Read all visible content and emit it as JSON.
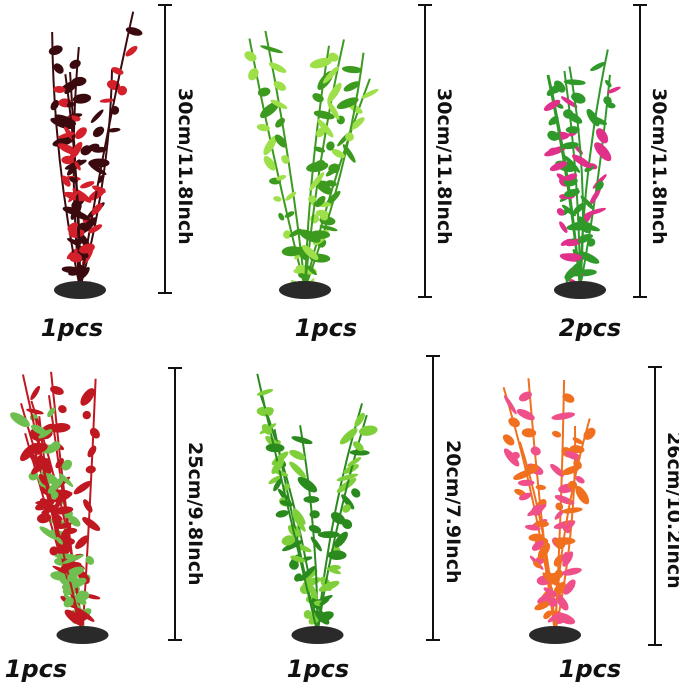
{
  "products": [
    {
      "size": "30cm/11.8Inch",
      "quantity": "1pcs",
      "colors": [
        "#3a0a0e",
        "#d3202a"
      ]
    },
    {
      "size": "30cm/11.8Inch",
      "quantity": "1pcs",
      "colors": [
        "#3c9a1e",
        "#9ee04a"
      ]
    },
    {
      "size": "30cm/11.8Inch",
      "quantity": "2pcs",
      "colors": [
        "#2f9a2a",
        "#e0308a"
      ]
    },
    {
      "size": "25cm/9.8Inch",
      "quantity": "1pcs",
      "colors": [
        "#c01820",
        "#6fbf50"
      ]
    },
    {
      "size": "20cm/7.9Inch",
      "quantity": "1pcs",
      "colors": [
        "#2a8a1e",
        "#7fcf3a"
      ]
    },
    {
      "size": "26cm/10.2Inch",
      "quantity": "1pcs",
      "colors": [
        "#f07020",
        "#f0508a"
      ]
    }
  ]
}
